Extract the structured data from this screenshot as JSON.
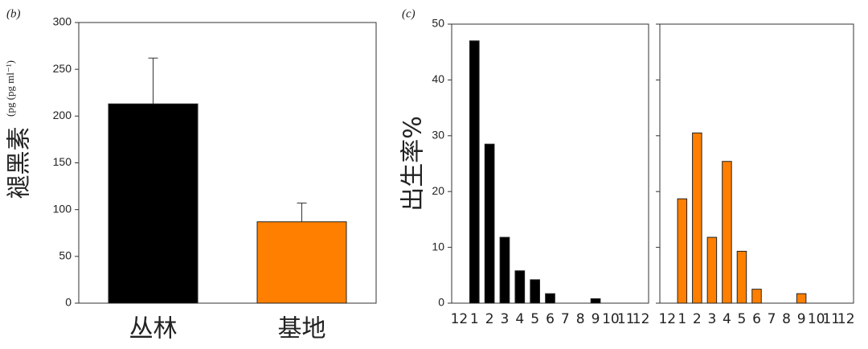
{
  "chart_data": [
    {
      "type": "bar",
      "panel_label": "(b)",
      "ylabel": "褪黑素",
      "ylabel_unit": "(pg (pg ml⁻¹)",
      "categories": [
        "丛林",
        "基地"
      ],
      "values": [
        213,
        87
      ],
      "errors": [
        49,
        20
      ],
      "colors": [
        "#000000",
        "#ff7f00"
      ],
      "ylim": [
        0,
        300
      ],
      "yticks": [
        0,
        50,
        100,
        150,
        200,
        250,
        300
      ]
    },
    {
      "type": "bar",
      "panel_label": "(c)",
      "ylabel": "出生率%",
      "categories": [
        "12",
        "1",
        "2",
        "3",
        "4",
        "5",
        "6",
        "7",
        "8",
        "9",
        "10",
        "11",
        "12"
      ],
      "values": [
        0,
        47,
        28.5,
        11.8,
        5.8,
        4.2,
        1.7,
        0,
        0,
        0.8,
        0,
        0,
        0
      ],
      "color": "#000000",
      "ylim": [
        0,
        50
      ],
      "yticks": [
        0,
        10,
        20,
        30,
        40,
        50
      ]
    },
    {
      "type": "bar",
      "categories": [
        "12",
        "1",
        "2",
        "3",
        "4",
        "5",
        "6",
        "7",
        "8",
        "9",
        "10",
        "11",
        "12"
      ],
      "values": [
        0,
        18.7,
        30.5,
        11.8,
        25.4,
        9.3,
        2.5,
        0,
        0,
        1.7,
        0,
        0,
        0
      ],
      "color": "#ff7f00",
      "ylim": [
        0,
        50
      ]
    }
  ]
}
